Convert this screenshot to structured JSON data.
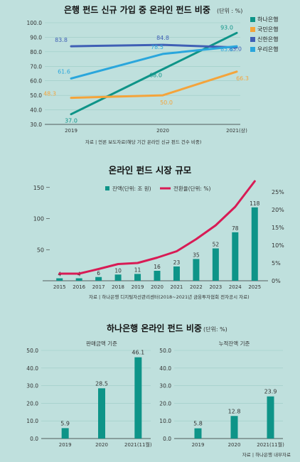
{
  "chart_data": [
    {
      "type": "line",
      "title": "은행 펀드 신규 가입 중 온라인 펀드 비중",
      "unit": "(단위 : %)",
      "x": [
        "2019",
        "2020",
        "2021(상)"
      ],
      "ylim": [
        30,
        100
      ],
      "yticks": [
        "30.0",
        "40.0",
        "50.0",
        "60.0",
        "70.0",
        "80.0",
        "90.0",
        "100.0"
      ],
      "series": [
        {
          "name": "하나은행",
          "color": "#0e9488",
          "values": [
            37.0,
            68.0,
            93.0
          ],
          "labels": [
            "37.0",
            "68.0",
            "93.0"
          ]
        },
        {
          "name": "국민은행",
          "color": "#f4a43b",
          "values": [
            48.3,
            50.0,
            66.3
          ],
          "labels": [
            "48.3",
            "50.0",
            "66.3"
          ]
        },
        {
          "name": "신한은행",
          "color": "#3f5fb5",
          "values": [
            83.8,
            84.8,
            83.0
          ],
          "labels": [
            "83.8",
            "84.8",
            "83.0"
          ]
        },
        {
          "name": "우리은행",
          "color": "#2aa6dc",
          "values": [
            61.6,
            78.5,
            83.8
          ],
          "labels": [
            "61.6",
            "78.5",
            "83.8"
          ]
        }
      ],
      "legend": "right",
      "source": "자료 | 언론 보도자료(해당 기간 온라인 신규 펀드 건수 비중)"
    },
    {
      "type": "bar+line",
      "title": "온라인 펀드 시장 규모",
      "categories": [
        "2015",
        "2016",
        "2017",
        "2018",
        "2019",
        "2020",
        "2021",
        "2022",
        "2023",
        "2024",
        "2025"
      ],
      "series": [
        {
          "name": "잔액(단위: 조 원)",
          "type": "bar",
          "color": "#0e9488",
          "values": [
            4,
            4,
            6,
            10,
            11,
            16,
            23,
            35,
            52,
            78,
            118
          ],
          "axis": "left"
        },
        {
          "name": "전환율(단위: %)",
          "type": "line",
          "color": "#d81b55",
          "values": [
            2.0,
            2.0,
            3.3,
            4.7,
            5.0,
            6.5,
            8.3,
            11.7,
            15.6,
            20.8,
            28.0
          ],
          "axis": "right"
        }
      ],
      "ylim_left": [
        0,
        160
      ],
      "yticks_left": [
        "50",
        "100",
        "150"
      ],
      "ylim_right": [
        0,
        28
      ],
      "yticks_right": [
        "0%",
        "5%",
        "10%",
        "15%",
        "20%",
        "25%"
      ],
      "legend": "top-center",
      "source": "자료 | 하나은행 디지털자산관리센터(2018~2021년 금융투자협회 전자공시 자료)"
    },
    {
      "type": "bar",
      "title": "하나은행 온라인 펀드 비중",
      "unit": "(단위: %)",
      "panels": [
        {
          "subtitle": "판매금액 기준",
          "categories": [
            "2019",
            "2020",
            "2021(11월)"
          ],
          "values": [
            5.9,
            28.5,
            46.1
          ],
          "labels": [
            "5.9",
            "28.5",
            "46.1"
          ]
        },
        {
          "subtitle": "누적잔액 기준",
          "categories": [
            "2019",
            "2020",
            "2021(11월)"
          ],
          "values": [
            5.8,
            12.8,
            23.9
          ],
          "labels": [
            "5.8",
            "12.8",
            "23.9"
          ]
        }
      ],
      "ylim": [
        0,
        50
      ],
      "yticks": [
        "0.0",
        "10.0",
        "20.0",
        "30.0",
        "40.0",
        "50.0"
      ],
      "color": "#0e9488",
      "source": "자료 | 하나은행 내부자료"
    }
  ]
}
